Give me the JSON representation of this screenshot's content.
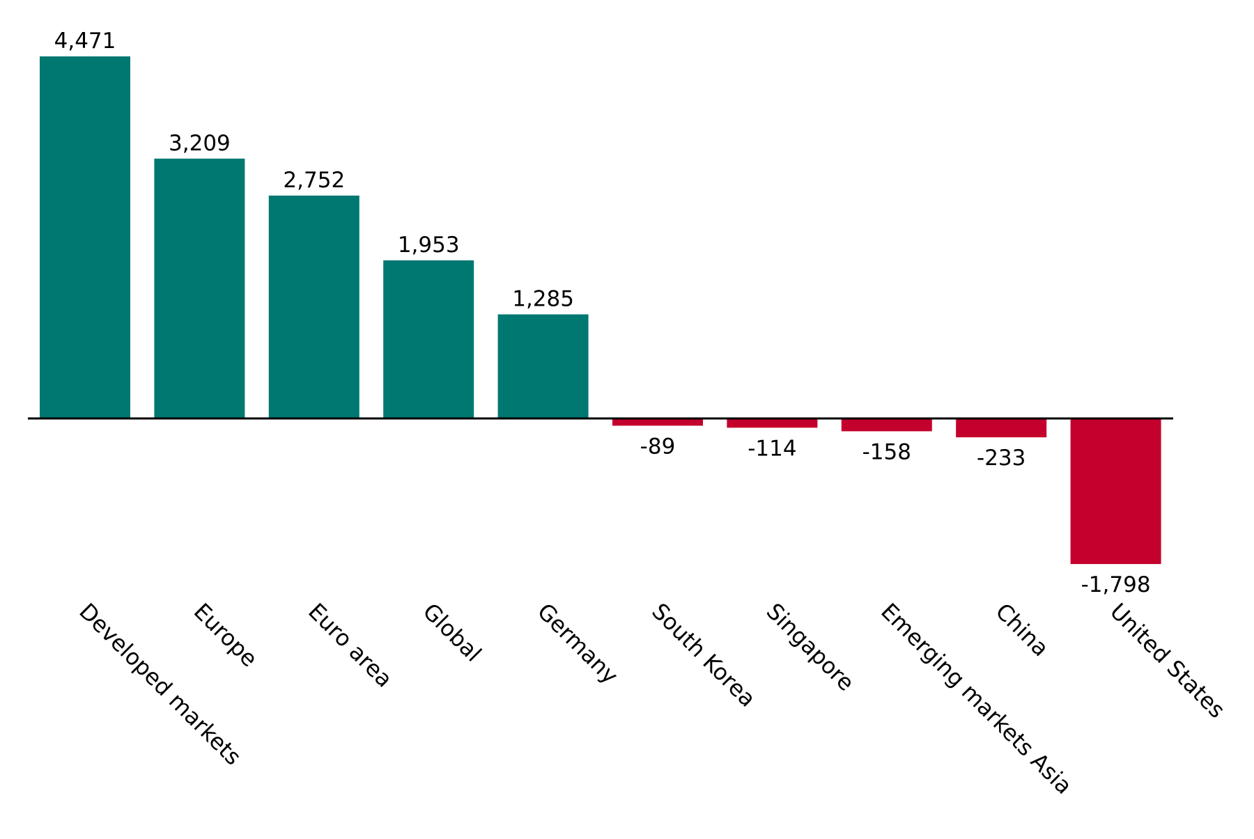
{
  "chart_data": {
    "type": "bar",
    "categories": [
      "Developed markets",
      "Europe",
      "Euro area",
      "Global",
      "Germany",
      "South Korea",
      "Singapore",
      "Emerging markets Asia",
      "China",
      "United States"
    ],
    "values": [
      4471,
      3209,
      2752,
      1953,
      1285,
      -89,
      -114,
      -158,
      -233,
      -1798
    ],
    "value_labels": [
      "4,471",
      "3,209",
      "2,752",
      "1,953",
      "1,285",
      "-89",
      "-114",
      "-158",
      "-233",
      "-1,798"
    ],
    "title": "",
    "xlabel": "",
    "ylabel": "",
    "ylim": [
      -1798,
      4471
    ],
    "grid": false,
    "legend": "none",
    "colors": {
      "positive": "#007872",
      "negative": "#c4002d",
      "axis": "#000000"
    }
  }
}
